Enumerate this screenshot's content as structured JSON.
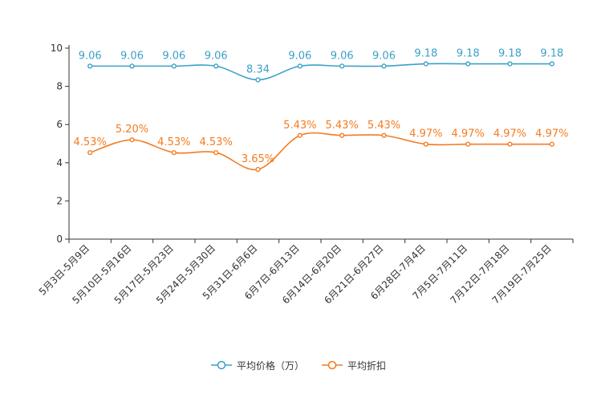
{
  "chart_data": {
    "type": "line",
    "categories": [
      "5月3日-5月9日",
      "5月10日-5月16日",
      "5月17日-5月23日",
      "5月24日-5月30日",
      "5月31日-6月6日",
      "6月7日-6月13日",
      "6月14日-6月20日",
      "6月21日-6月27日",
      "6月28日-7月4日",
      "7月5日-7月11日",
      "7月12日-7月18日",
      "7月19日-7月25日"
    ],
    "ylim": [
      0,
      10
    ],
    "yticks": [
      "0",
      "2",
      "4",
      "6",
      "8",
      "10"
    ],
    "series": [
      {
        "name": "平均价格（万）",
        "values": [
          9.06,
          9.06,
          9.06,
          9.06,
          8.34,
          9.06,
          9.06,
          9.06,
          9.18,
          9.18,
          9.18,
          9.18
        ],
        "labels": [
          "9.06",
          "9.06",
          "9.06",
          "9.06",
          "8.34",
          "9.06",
          "9.06",
          "9.06",
          "9.18",
          "9.18",
          "9.18",
          "9.18"
        ],
        "color": "#3ba0c8"
      },
      {
        "name": "平均折扣",
        "values": [
          4.53,
          5.2,
          4.53,
          4.53,
          3.65,
          5.43,
          5.43,
          5.43,
          4.97,
          4.97,
          4.97,
          4.97
        ],
        "labels": [
          "4.53%",
          "5.20%",
          "4.53%",
          "4.53%",
          "3.65%",
          "5.43%",
          "5.43%",
          "5.43%",
          "4.97%",
          "4.97%",
          "4.97%",
          "4.97%"
        ],
        "color": "#f47b20"
      }
    ]
  }
}
